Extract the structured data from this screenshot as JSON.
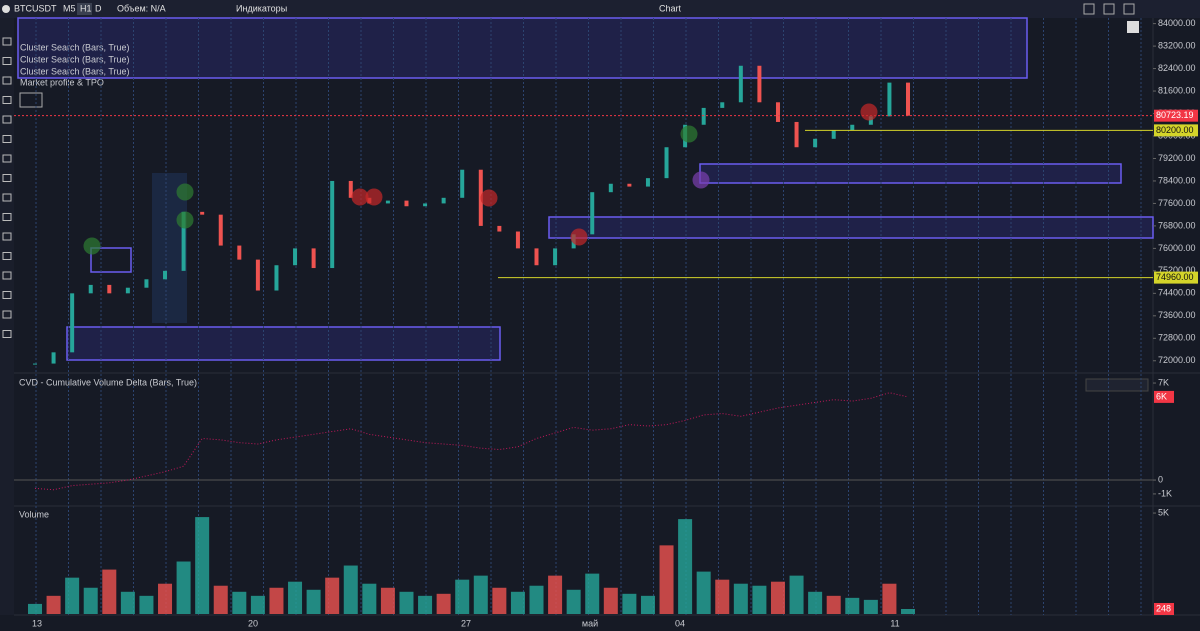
{
  "toolbar": {
    "symbol": "BTCUSDT",
    "timeframes": [
      "M5",
      "H1",
      "D"
    ],
    "volume": "Объем: N/A",
    "indicators": "Индикаторы",
    "title": "Chart"
  },
  "overlays": [
    "Cluster Search (Bars, True)",
    "Cluster Search (Bars, True)",
    "Cluster Search (Bars, True)",
    "Market profile & TPO"
  ],
  "x_labels": [
    "13",
    "20",
    "27",
    "май",
    "04",
    "11"
  ],
  "chart_data": [
    {
      "type": "candlestick",
      "up_color": "#26a69a",
      "down_color": "#ef5350",
      "values": [
        71900,
        72300,
        74400,
        74700,
        74400,
        74600,
        74900,
        75200,
        77300,
        77200,
        76100,
        75600,
        74500,
        75400,
        76000,
        75300,
        78400,
        77800,
        77600,
        77700,
        77500,
        77600,
        77800,
        78800,
        76800,
        76600,
        76000,
        75400,
        76000,
        76500,
        78000,
        78300,
        78200,
        78500,
        79600,
        80400,
        81000,
        81200,
        82500,
        81200,
        80500,
        79600,
        79900,
        80200,
        80400,
        80700,
        81900,
        80723.19
      ],
      "ylim": [
        71600,
        84200
      ],
      "yticks": [
        {
          "value": 84000,
          "label": "84000.00"
        },
        {
          "value": 83200,
          "label": "83200.00"
        },
        {
          "value": 82400,
          "label": "82400.00"
        },
        {
          "value": 81600,
          "label": "81600.00"
        },
        {
          "value": 80800,
          "label": "80800.00"
        },
        {
          "value": 80000,
          "label": "80000.00"
        },
        {
          "value": 79200,
          "label": "79200.00"
        },
        {
          "value": 78400,
          "label": "78400.00"
        },
        {
          "value": 77600,
          "label": "77600.00"
        },
        {
          "value": 76800,
          "label": "76800.00"
        },
        {
          "value": 76000,
          "label": "76000.00"
        },
        {
          "value": 75200,
          "label": "75200.00"
        },
        {
          "value": 74400,
          "label": "74400.00"
        },
        {
          "value": 73600,
          "label": "73600.00"
        },
        {
          "value": 72800,
          "label": "72800.00"
        },
        {
          "value": 72000,
          "label": "72000.00"
        }
      ],
      "levels": [
        {
          "value": 80723.19,
          "color": "#f23645"
        },
        {
          "value": 80200,
          "label": "80200.00",
          "color": "#d4d42a"
        },
        {
          "value": 74960,
          "label": "74960.00",
          "color": "#d4d42a"
        }
      ]
    },
    {
      "type": "line",
      "title": "CVD - Cumulative Volume Delta (Bars, True)",
      "color": "#c2185b",
      "values": [
        -600,
        -700,
        -400,
        -300,
        -200,
        0,
        300,
        600,
        1000,
        3000,
        2900,
        2700,
        2600,
        2900,
        3100,
        3300,
        3500,
        3700,
        3300,
        3100,
        2900,
        2700,
        2600,
        2500,
        2300,
        2200,
        2400,
        3000,
        3400,
        3800,
        3600,
        3700,
        4000,
        3900,
        4000,
        4300,
        4700,
        4800,
        4600,
        4900,
        5200,
        5400,
        5600,
        5800,
        5700,
        5900,
        6300,
        6000
      ],
      "ylim": [
        -1800,
        7580
      ],
      "yticks": [
        {
          "value": 7000,
          "label": "7K"
        },
        0,
        {
          "value": -1000,
          "label": "-1K"
        }
      ],
      "current": {
        "value": 6000,
        "label": "6K"
      }
    },
    {
      "type": "bar",
      "title": "Volume",
      "up_color": "#26a69a",
      "down_color": "#ef5350",
      "values": [
        500,
        900,
        1800,
        1300,
        2200,
        1100,
        900,
        1500,
        2600,
        4800,
        1400,
        1100,
        900,
        1300,
        1600,
        1200,
        1800,
        2400,
        1500,
        1300,
        1100,
        900,
        1000,
        1700,
        1900,
        1300,
        1100,
        1400,
        1900,
        1200,
        2000,
        1300,
        1000,
        900,
        3400,
        4700,
        2100,
        1700,
        1500,
        1400,
        1600,
        1900,
        1100,
        900,
        800,
        700,
        1500,
        248
      ],
      "ylim": [
        0,
        5300
      ],
      "yticks": [
        {
          "value": 5000,
          "label": "5K"
        }
      ],
      "current": 248
    }
  ]
}
